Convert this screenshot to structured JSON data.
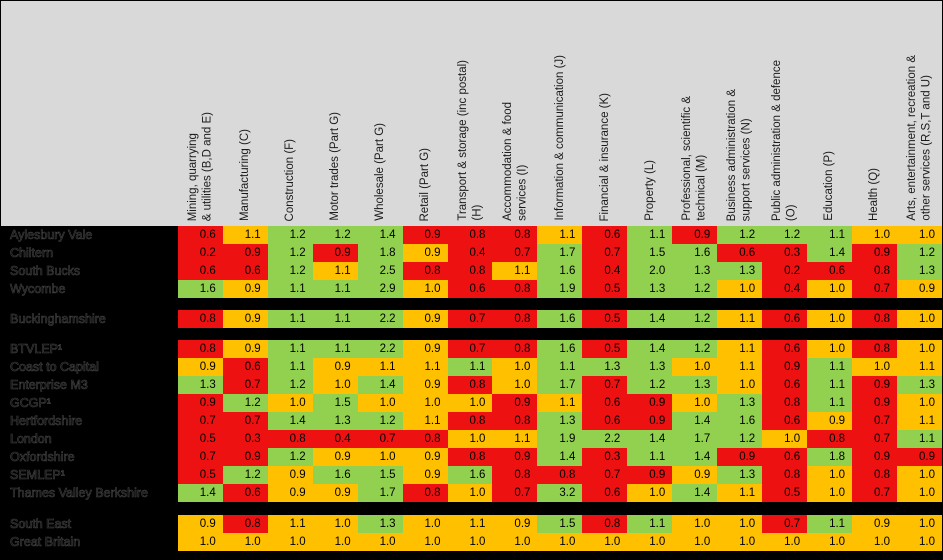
{
  "colors": {
    "red": "#ee1111",
    "amber": "#ffc000",
    "green": "#92d050",
    "header_bg": "#d9d9d9",
    "frame": "#000000"
  },
  "columns": [
    "Mining, quarrying\n& utilities (B,D and E)",
    "Manufacturing (C)",
    "Construction (F)",
    "Motor trades (Part G)",
    "Wholesale (Part G)",
    "Retail (Part G)",
    "Transport & storage (inc postal)\n(H)",
    "Accommodation & food\nservices (I)",
    "Information & communication (J)",
    "Financial & insurance (K)",
    "Property (L)",
    "Professional, scientific &\ntechnical (M)",
    "Business administration &\nsupport services (N)",
    "Public administration & defence\n(O)",
    "Education (P)",
    "Health (Q)",
    "Arts, entertainment, recreation &\nother services (R,S,T and U)"
  ],
  "chart_data": {
    "type": "heatmap",
    "note": "location quotient RAG heatmap; r=red a=amber g=green",
    "row_groups": [
      {
        "rows": [
          {
            "label": "Aylesbury Vale",
            "values": [
              "0.6",
              "1.1",
              "1.2",
              "1.2",
              "1.4",
              "0.9",
              "0.8",
              "0.8",
              "1.1",
              "0.6",
              "1.1",
              "0.9",
              "1.2",
              "1.2",
              "1.1",
              "1.0",
              "1.0"
            ],
            "rag": [
              "r",
              "a",
              "g",
              "g",
              "g",
              "r",
              "r",
              "r",
              "a",
              "r",
              "g",
              "r",
              "g",
              "g",
              "g",
              "a",
              "a"
            ]
          },
          {
            "label": "Chiltern",
            "values": [
              "0.2",
              "0.9",
              "1.2",
              "0.9",
              "1.8",
              "0.9",
              "0.4",
              "0.7",
              "1.7",
              "0.7",
              "1.5",
              "1.6",
              "0.6",
              "0.3",
              "1.4",
              "0.9",
              "1.2"
            ],
            "rag": [
              "r",
              "r",
              "g",
              "r",
              "g",
              "a",
              "r",
              "r",
              "g",
              "r",
              "g",
              "g",
              "r",
              "r",
              "g",
              "r",
              "g"
            ]
          },
          {
            "label": "South Bucks",
            "values": [
              "0.6",
              "0.6",
              "1.2",
              "1.1",
              "2.5",
              "0.8",
              "0.8",
              "1.1",
              "1.6",
              "0.4",
              "2.0",
              "1.3",
              "1.3",
              "0.2",
              "0.6",
              "0.8",
              "1.3"
            ],
            "rag": [
              "r",
              "r",
              "g",
              "a",
              "g",
              "r",
              "r",
              "a",
              "g",
              "r",
              "g",
              "g",
              "g",
              "r",
              "r",
              "r",
              "g"
            ]
          },
          {
            "label": "Wycombe",
            "values": [
              "1.6",
              "0.9",
              "1.1",
              "1.1",
              "2.9",
              "1.0",
              "0.6",
              "0.8",
              "1.9",
              "0.5",
              "1.3",
              "1.2",
              "1.0",
              "0.4",
              "1.0",
              "0.7",
              "0.9"
            ],
            "rag": [
              "g",
              "a",
              "g",
              "g",
              "g",
              "a",
              "r",
              "r",
              "g",
              "r",
              "g",
              "g",
              "a",
              "r",
              "a",
              "r",
              "a"
            ]
          }
        ]
      },
      {
        "rows": [
          {
            "label": "Buckinghamshire",
            "values": [
              "0.8",
              "0.9",
              "1.1",
              "1.1",
              "2.2",
              "0.9",
              "0.7",
              "0.8",
              "1.6",
              "0.5",
              "1.4",
              "1.2",
              "1.1",
              "0.6",
              "1.0",
              "0.8",
              "1.0"
            ],
            "rag": [
              "r",
              "a",
              "g",
              "g",
              "g",
              "a",
              "r",
              "r",
              "g",
              "r",
              "g",
              "g",
              "a",
              "r",
              "a",
              "r",
              "a"
            ]
          }
        ]
      },
      {
        "rows": [
          {
            "label": "BTVLEP¹",
            "values": [
              "0.8",
              "0.9",
              "1.1",
              "1.1",
              "2.2",
              "0.9",
              "0.7",
              "0.8",
              "1.6",
              "0.5",
              "1.4",
              "1.2",
              "1.1",
              "0.6",
              "1.0",
              "0.8",
              "1.0"
            ],
            "rag": [
              "r",
              "a",
              "g",
              "g",
              "g",
              "a",
              "r",
              "r",
              "g",
              "r",
              "g",
              "g",
              "a",
              "r",
              "a",
              "r",
              "a"
            ]
          },
          {
            "label": "Coast to Capital",
            "values": [
              "0.9",
              "0.6",
              "1.1",
              "0.9",
              "1.1",
              "1.1",
              "1.1",
              "1.0",
              "1.1",
              "1.3",
              "1.3",
              "1.0",
              "1.1",
              "0.9",
              "1.1",
              "1.0",
              "1.1"
            ],
            "rag": [
              "a",
              "r",
              "g",
              "a",
              "a",
              "a",
              "g",
              "a",
              "g",
              "g",
              "g",
              "a",
              "a",
              "r",
              "g",
              "a",
              "a"
            ]
          },
          {
            "label": "Enterprise M3",
            "values": [
              "1.3",
              "0.7",
              "1.2",
              "1.0",
              "1.4",
              "0.9",
              "0.8",
              "1.0",
              "1.7",
              "0.7",
              "1.2",
              "1.3",
              "1.0",
              "0.6",
              "1.1",
              "0.9",
              "1.3"
            ],
            "rag": [
              "g",
              "r",
              "g",
              "a",
              "g",
              "a",
              "r",
              "a",
              "g",
              "r",
              "g",
              "g",
              "a",
              "r",
              "g",
              "r",
              "g"
            ]
          },
          {
            "label": "GCGP¹",
            "values": [
              "0.9",
              "1.2",
              "1.0",
              "1.5",
              "1.0",
              "1.0",
              "1.0",
              "0.9",
              "1.1",
              "0.6",
              "0.9",
              "1.0",
              "1.3",
              "0.8",
              "1.1",
              "0.9",
              "1.0"
            ],
            "rag": [
              "r",
              "g",
              "a",
              "g",
              "a",
              "a",
              "a",
              "r",
              "a",
              "r",
              "r",
              "a",
              "g",
              "r",
              "g",
              "r",
              "a"
            ]
          },
          {
            "label": "Hertfordshire",
            "values": [
              "0.7",
              "0.7",
              "1.4",
              "1.3",
              "1.2",
              "1.1",
              "0.8",
              "0.8",
              "1.3",
              "0.6",
              "0.9",
              "1.4",
              "1.6",
              "0.6",
              "0.9",
              "0.7",
              "1.1"
            ],
            "rag": [
              "r",
              "r",
              "g",
              "g",
              "g",
              "a",
              "r",
              "r",
              "g",
              "r",
              "r",
              "g",
              "g",
              "r",
              "a",
              "r",
              "a"
            ]
          },
          {
            "label": "London",
            "values": [
              "0.5",
              "0.3",
              "0.8",
              "0.4",
              "0.7",
              "0.8",
              "1.0",
              "1.1",
              "1.9",
              "2.2",
              "1.4",
              "1.7",
              "1.2",
              "1.0",
              "0.8",
              "0.7",
              "1.1"
            ],
            "rag": [
              "r",
              "r",
              "r",
              "r",
              "r",
              "r",
              "a",
              "a",
              "g",
              "g",
              "g",
              "g",
              "g",
              "a",
              "r",
              "r",
              "g"
            ]
          },
          {
            "label": "Oxfordshire",
            "values": [
              "0.7",
              "0.9",
              "1.2",
              "0.9",
              "1.0",
              "0.9",
              "0.8",
              "0.9",
              "1.4",
              "0.3",
              "1.1",
              "1.4",
              "0.9",
              "0.6",
              "1.8",
              "0.9",
              "0.9"
            ],
            "rag": [
              "r",
              "r",
              "g",
              "a",
              "a",
              "a",
              "r",
              "r",
              "g",
              "r",
              "g",
              "g",
              "r",
              "r",
              "g",
              "r",
              "r"
            ]
          },
          {
            "label": "SEMLEP¹",
            "values": [
              "0.5",
              "1.2",
              "0.9",
              "1.6",
              "1.5",
              "0.9",
              "1.6",
              "0.8",
              "0.8",
              "0.7",
              "0.9",
              "0.9",
              "1.3",
              "0.8",
              "1.0",
              "0.8",
              "1.0"
            ],
            "rag": [
              "r",
              "g",
              "a",
              "g",
              "g",
              "a",
              "g",
              "r",
              "r",
              "r",
              "r",
              "a",
              "g",
              "r",
              "a",
              "r",
              "a"
            ]
          },
          {
            "label": "Thames Valley Berkshire",
            "values": [
              "1.4",
              "0.6",
              "0.9",
              "0.9",
              "1.7",
              "0.8",
              "1.0",
              "0.7",
              "3.2",
              "0.6",
              "1.0",
              "1.4",
              "1.1",
              "0.5",
              "1.0",
              "0.7",
              "1.0"
            ],
            "rag": [
              "g",
              "r",
              "a",
              "a",
              "g",
              "r",
              "a",
              "r",
              "g",
              "r",
              "a",
              "g",
              "a",
              "r",
              "a",
              "r",
              "a"
            ]
          }
        ]
      },
      {
        "rows": [
          {
            "label": "South East",
            "values": [
              "0.9",
              "0.8",
              "1.1",
              "1.0",
              "1.3",
              "1.0",
              "1.1",
              "0.9",
              "1.5",
              "0.8",
              "1.1",
              "1.0",
              "1.0",
              "0.7",
              "1.1",
              "0.9",
              "1.0"
            ],
            "rag": [
              "a",
              "r",
              "a",
              "a",
              "g",
              "a",
              "a",
              "a",
              "g",
              "r",
              "g",
              "a",
              "a",
              "r",
              "g",
              "a",
              "a"
            ]
          },
          {
            "label": "Great Britain",
            "values": [
              "1.0",
              "1.0",
              "1.0",
              "1.0",
              "1.0",
              "1.0",
              "1.0",
              "1.0",
              "1.0",
              "1.0",
              "1.0",
              "1.0",
              "1.0",
              "1.0",
              "1.0",
              "1.0",
              "1.0"
            ],
            "rag": [
              "a",
              "a",
              "a",
              "a",
              "a",
              "a",
              "a",
              "a",
              "a",
              "a",
              "a",
              "a",
              "a",
              "a",
              "a",
              "a",
              "a"
            ]
          }
        ]
      }
    ]
  }
}
